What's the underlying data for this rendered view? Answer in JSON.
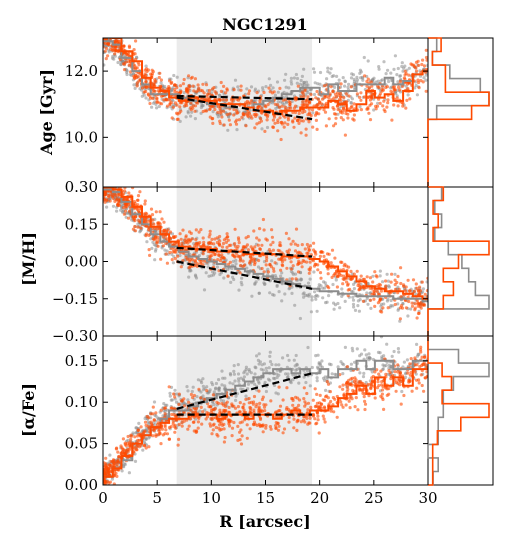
{
  "chart_data": {
    "type": "scatter",
    "title": "NGC1291",
    "xlabel": "R [arcsec]",
    "xlim": [
      0,
      30
    ],
    "xticks": [
      "0",
      "5",
      "10",
      "15",
      "20",
      "25",
      "30"
    ],
    "shaded_region": [
      6.8,
      19.3
    ],
    "colors": {
      "orange": "#ff4a00",
      "gray": "#8c8c8c",
      "shade": "#ebebeb",
      "fit": "#000000"
    },
    "panels": [
      {
        "name": "age",
        "ylabel": "Age [Gyr]",
        "ylim": [
          8.5,
          13.0
        ],
        "yticks": [
          {
            "value": 10.0,
            "label": "10.0"
          },
          {
            "value": 12.0,
            "label": "12.0"
          }
        ],
        "profiles": {
          "gray": {
            "x": [
              0,
              0.9,
              1.7,
              2.7,
              3.6,
              4.4,
              5.3,
              6.1,
              7.0,
              7.9,
              8.8,
              9.6,
              10.5,
              11.3,
              12.2,
              13.1,
              13.9,
              14.8,
              15.7,
              16.5,
              17.4,
              18.2,
              19.1,
              20.0,
              20.8,
              21.7,
              22.5,
              23.4,
              24.3,
              25.1,
              26.0,
              26.8,
              27.7,
              28.6,
              29.5,
              30
            ],
            "y": [
              12.9,
              12.8,
              12.4,
              12.0,
              11.6,
              11.3,
              11.3,
              11.3,
              11.2,
              11.1,
              11.1,
              11.0,
              11.0,
              10.9,
              11.0,
              10.9,
              11.0,
              11.1,
              11.2,
              11.3,
              11.4,
              11.5,
              11.5,
              11.3,
              11.6,
              11.4,
              11.4,
              11.6,
              11.6,
              11.6,
              11.8,
              11.6,
              11.7,
              11.9,
              12.0,
              12.0
            ]
          },
          "orange": {
            "x": [
              0,
              0.9,
              1.7,
              2.7,
              3.6,
              4.4,
              5.3,
              6.1,
              7.0,
              7.9,
              8.8,
              9.6,
              10.5,
              11.3,
              12.2,
              13.1,
              13.9,
              14.8,
              15.7,
              16.5,
              17.4,
              18.2,
              19.1,
              20.0,
              20.8,
              21.7,
              22.5,
              23.4,
              24.3,
              25.1,
              26.0,
              26.8,
              27.7,
              28.6,
              29.5,
              30
            ],
            "y": [
              13.1,
              13.0,
              12.6,
              12.3,
              11.8,
              11.5,
              11.4,
              11.2,
              11.1,
              11.2,
              11.1,
              11.1,
              11.0,
              11.0,
              11.0,
              10.9,
              10.8,
              10.8,
              10.7,
              10.8,
              10.8,
              10.9,
              10.9,
              10.9,
              11.1,
              11.0,
              10.8,
              11.0,
              11.4,
              11.2,
              11.3,
              11.1,
              11.4,
              11.9,
              12.0,
              12.0
            ]
          }
        },
        "fits": [
          {
            "x": [
              6.8,
              19.3
            ],
            "y": [
              11.25,
              11.15
            ]
          },
          {
            "x": [
              6.8,
              19.3
            ],
            "y": [
              11.2,
              10.55
            ]
          }
        ]
      },
      {
        "name": "metallicity",
        "ylabel": "[M/H]",
        "ylim": [
          -0.3,
          0.3
        ],
        "yticks": [
          {
            "value": -0.3,
            "label": "−0.30"
          },
          {
            "value": -0.15,
            "label": "−0.15"
          },
          {
            "value": 0.0,
            "label": "0.00"
          },
          {
            "value": 0.15,
            "label": "0.15"
          },
          {
            "value": 0.3,
            "label": "0.30"
          }
        ],
        "profiles": {
          "gray": {
            "x": [
              0,
              0.9,
              1.7,
              2.7,
              3.6,
              4.4,
              5.3,
              6.1,
              7.0,
              7.9,
              8.8,
              9.6,
              10.5,
              11.3,
              12.2,
              13.1,
              13.9,
              14.8,
              15.7,
              16.5,
              17.4,
              18.2,
              19.1,
              20.0,
              20.8,
              21.7,
              22.5,
              23.4,
              24.3,
              25.1,
              26.0,
              26.8,
              27.7,
              28.6,
              29.5,
              30
            ],
            "y": [
              0.29,
              0.28,
              0.24,
              0.19,
              0.15,
              0.11,
              0.08,
              0.06,
              0.04,
              0.02,
              0.01,
              0.0,
              -0.01,
              -0.02,
              -0.03,
              -0.04,
              -0.05,
              -0.06,
              -0.07,
              -0.08,
              -0.09,
              -0.1,
              -0.11,
              -0.12,
              -0.12,
              -0.13,
              -0.13,
              -0.14,
              -0.14,
              -0.14,
              -0.14,
              -0.15,
              -0.15,
              -0.15,
              -0.16,
              -0.16
            ]
          },
          "orange": {
            "x": [
              0,
              0.9,
              1.7,
              2.7,
              3.6,
              4.4,
              5.3,
              6.1,
              7.0,
              7.9,
              8.8,
              9.6,
              10.5,
              11.3,
              12.2,
              13.1,
              13.9,
              14.8,
              15.7,
              16.5,
              17.4,
              18.2,
              19.1,
              20.0,
              20.8,
              21.7,
              22.5,
              23.4,
              24.3,
              25.1,
              26.0,
              26.8,
              27.7,
              28.6,
              29.5,
              30
            ],
            "y": [
              0.3,
              0.29,
              0.26,
              0.22,
              0.18,
              0.14,
              0.11,
              0.08,
              0.06,
              0.05,
              0.05,
              0.05,
              0.04,
              0.04,
              0.04,
              0.03,
              0.03,
              0.03,
              0.03,
              0.02,
              0.02,
              0.02,
              0.01,
              0.0,
              -0.02,
              -0.04,
              -0.06,
              -0.08,
              -0.1,
              -0.11,
              -0.12,
              -0.12,
              -0.13,
              -0.14,
              -0.15,
              -0.15
            ]
          }
        },
        "fits": [
          {
            "x": [
              6.8,
              19.3
            ],
            "y": [
              0.055,
              0.02
            ]
          },
          {
            "x": [
              6.8,
              19.3
            ],
            "y": [
              0.0,
              -0.11
            ]
          }
        ]
      },
      {
        "name": "alpha",
        "ylabel": "[α/Fe]",
        "ylim": [
          0.0,
          0.18
        ],
        "yticks": [
          {
            "value": 0.0,
            "label": "0.00"
          },
          {
            "value": 0.05,
            "label": "0.05"
          },
          {
            "value": 0.1,
            "label": "0.10"
          },
          {
            "value": 0.15,
            "label": "0.15"
          }
        ],
        "profiles": {
          "gray": {
            "x": [
              0,
              0.9,
              1.7,
              2.7,
              3.6,
              4.4,
              5.3,
              6.1,
              7.0,
              7.9,
              8.8,
              9.6,
              10.5,
              11.3,
              12.2,
              13.1,
              13.9,
              14.8,
              15.7,
              16.5,
              17.4,
              18.2,
              19.1,
              20.0,
              20.8,
              21.7,
              22.5,
              23.4,
              24.3,
              25.1,
              26.0,
              26.8,
              27.7,
              28.6,
              29.5,
              30
            ],
            "y": [
              0.01,
              0.02,
              0.03,
              0.05,
              0.06,
              0.07,
              0.08,
              0.09,
              0.09,
              0.095,
              0.1,
              0.105,
              0.11,
              0.115,
              0.12,
              0.125,
              0.13,
              0.135,
              0.14,
              0.14,
              0.135,
              0.14,
              0.135,
              0.14,
              0.13,
              0.14,
              0.14,
              0.15,
              0.14,
              0.15,
              0.15,
              0.14,
              0.14,
              0.15,
              0.15,
              0.15
            ]
          },
          "orange": {
            "x": [
              0,
              0.9,
              1.7,
              2.7,
              3.6,
              4.4,
              5.3,
              6.1,
              7.0,
              7.9,
              8.8,
              9.6,
              10.5,
              11.3,
              12.2,
              13.1,
              13.9,
              14.8,
              15.7,
              16.5,
              17.4,
              18.2,
              19.1,
              20.0,
              20.8,
              21.7,
              22.5,
              23.4,
              24.3,
              25.1,
              26.0,
              26.8,
              27.7,
              28.6,
              29.5,
              30
            ],
            "y": [
              0.01,
              0.02,
              0.035,
              0.05,
              0.06,
              0.07,
              0.075,
              0.08,
              0.08,
              0.085,
              0.085,
              0.085,
              0.08,
              0.085,
              0.085,
              0.08,
              0.085,
              0.085,
              0.08,
              0.085,
              0.09,
              0.085,
              0.09,
              0.09,
              0.095,
              0.105,
              0.11,
              0.12,
              0.11,
              0.13,
              0.12,
              0.13,
              0.12,
              0.14,
              0.14,
              0.14
            ]
          }
        },
        "fits": [
          {
            "x": [
              6.8,
              19.3
            ],
            "y": [
              0.085,
              0.085
            ]
          },
          {
            "x": [
              6.8,
              19.3
            ],
            "y": [
              0.092,
              0.135
            ]
          }
        ]
      }
    ]
  }
}
